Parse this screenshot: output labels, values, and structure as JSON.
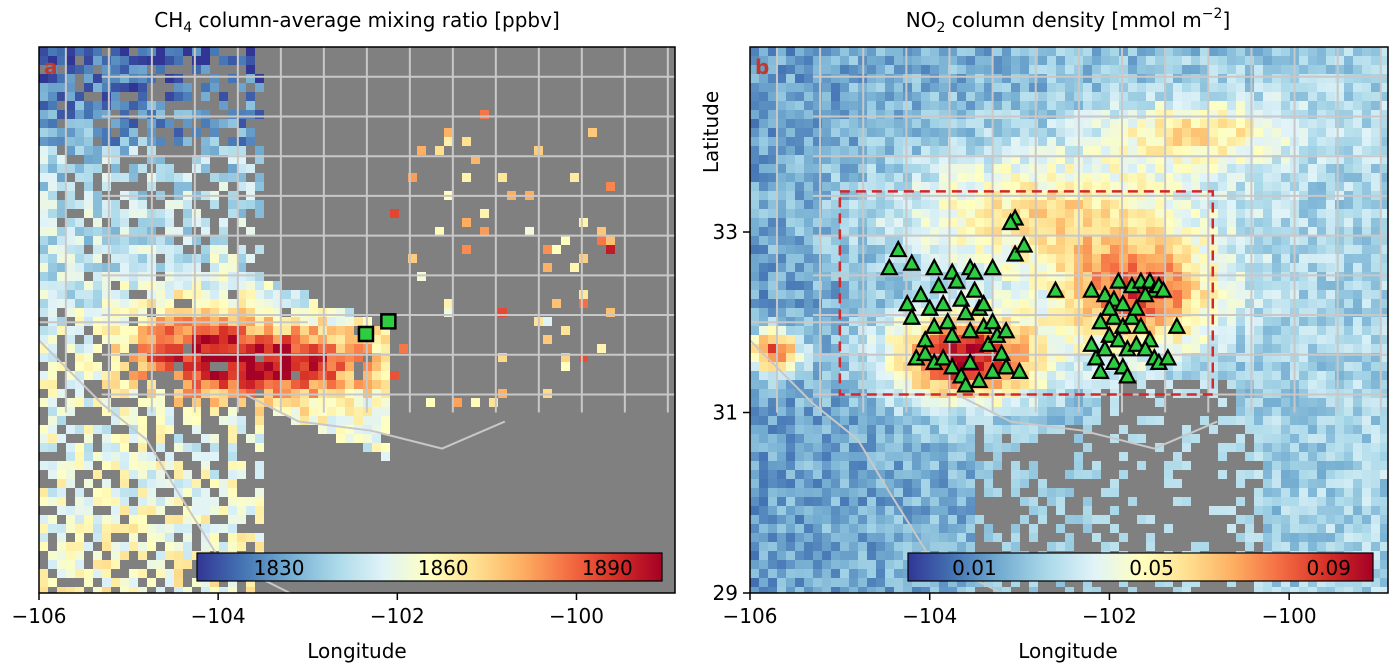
{
  "chart_data": [
    {
      "type": "heatmap",
      "panel_label": "a",
      "title": "CH4 column-average mixing ratio [ppbv]",
      "title_main": "CH",
      "title_sub": "4",
      "title_rest": " column-average mixing ratio [ppbv]",
      "xlabel": "Longitude",
      "ylabel": "",
      "xlim": [
        -106,
        -98.9
      ],
      "ylim": [
        29,
        35.05
      ],
      "xticks": [
        -106,
        -104,
        -102,
        -100
      ],
      "xtick_labels": [
        "−106",
        "−104",
        "−102",
        "−100"
      ],
      "colorbar": {
        "ticks": [
          1830,
          1860,
          1890
        ],
        "tick_labels": [
          "1830",
          "1860",
          "1890"
        ],
        "range": [
          1815,
          1900
        ],
        "cmap": "RdYlBu_r"
      },
      "background_color": "#808080",
      "markers": {
        "shape": "square",
        "color": "#2ecc40",
        "points": [
          [
            -102.35,
            31.87
          ],
          [
            -102.1,
            32.01
          ]
        ]
      }
    },
    {
      "type": "heatmap",
      "panel_label": "b",
      "title": "NO2 column density [mmol m−2]",
      "title_main": "NO",
      "title_sub": "2",
      "title_rest": " column density [mmol m",
      "title_sup": "−2",
      "title_end": "]",
      "xlabel": "Longitude",
      "ylabel": "Latitude",
      "xlim": [
        -106,
        -98.9
      ],
      "ylim": [
        29,
        35.05
      ],
      "xticks": [
        -106,
        -104,
        -102,
        -100
      ],
      "xtick_labels": [
        "−106",
        "−104",
        "−102",
        "−100"
      ],
      "yticks": [
        29,
        31,
        33
      ],
      "ytick_labels": [
        "29",
        "31",
        "33"
      ],
      "colorbar": {
        "ticks": [
          0.01,
          0.05,
          0.09
        ],
        "tick_labels": [
          "0.01",
          "0.05",
          "0.09"
        ],
        "range": [
          -0.005,
          0.1
        ],
        "cmap": "RdYlBu_r"
      },
      "box": {
        "lon": [
          -105.0,
          -100.85
        ],
        "lat": [
          31.2,
          33.45
        ],
        "style": "dashed",
        "color": "#d62728"
      },
      "markers": {
        "shape": "triangle",
        "color": "#2ecc40",
        "points": [
          [
            -104.35,
            32.8
          ],
          [
            -104.45,
            32.6
          ],
          [
            -104.2,
            32.65
          ],
          [
            -103.95,
            32.6
          ],
          [
            -103.75,
            32.55
          ],
          [
            -103.55,
            32.6
          ],
          [
            -103.3,
            32.6
          ],
          [
            -103.05,
            32.75
          ],
          [
            -102.95,
            32.85
          ],
          [
            -103.05,
            33.15
          ],
          [
            -103.1,
            33.1
          ],
          [
            -102.6,
            32.35
          ],
          [
            -104.25,
            32.2
          ],
          [
            -104.2,
            32.05
          ],
          [
            -104.1,
            32.3
          ],
          [
            -104.0,
            32.15
          ],
          [
            -103.95,
            31.95
          ],
          [
            -104.05,
            31.8
          ],
          [
            -103.9,
            32.4
          ],
          [
            -103.85,
            32.2
          ],
          [
            -103.8,
            32.0
          ],
          [
            -103.75,
            31.85
          ],
          [
            -103.7,
            32.45
          ],
          [
            -103.65,
            32.25
          ],
          [
            -103.6,
            32.1
          ],
          [
            -103.55,
            31.9
          ],
          [
            -103.5,
            32.35
          ],
          [
            -103.45,
            32.15
          ],
          [
            -103.4,
            31.95
          ],
          [
            -103.35,
            31.75
          ],
          [
            -103.3,
            32.0
          ],
          [
            -103.25,
            31.85
          ],
          [
            -103.2,
            31.65
          ],
          [
            -103.15,
            31.9
          ],
          [
            -103.4,
            32.2
          ],
          [
            -103.5,
            32.55
          ],
          [
            -104.15,
            31.6
          ],
          [
            -104.05,
            31.65
          ],
          [
            -103.95,
            31.55
          ],
          [
            -103.85,
            31.6
          ],
          [
            -103.75,
            31.5
          ],
          [
            -103.65,
            31.4
          ],
          [
            -103.55,
            31.55
          ],
          [
            -103.45,
            31.35
          ],
          [
            -103.3,
            31.45
          ],
          [
            -103.15,
            31.5
          ],
          [
            -103.0,
            31.45
          ],
          [
            -103.6,
            31.3
          ],
          [
            -102.2,
            32.35
          ],
          [
            -102.05,
            32.3
          ],
          [
            -101.95,
            32.25
          ],
          [
            -101.85,
            32.2
          ],
          [
            -101.75,
            32.4
          ],
          [
            -101.65,
            32.45
          ],
          [
            -101.55,
            32.45
          ],
          [
            -101.5,
            32.35
          ],
          [
            -101.45,
            32.4
          ],
          [
            -101.4,
            32.35
          ],
          [
            -101.6,
            32.3
          ],
          [
            -101.9,
            32.45
          ],
          [
            -102.1,
            32.0
          ],
          [
            -101.95,
            32.05
          ],
          [
            -101.85,
            31.95
          ],
          [
            -101.75,
            32.05
          ],
          [
            -101.65,
            31.95
          ],
          [
            -101.55,
            31.8
          ],
          [
            -102.0,
            31.85
          ],
          [
            -101.9,
            31.8
          ],
          [
            -101.8,
            31.7
          ],
          [
            -101.7,
            31.75
          ],
          [
            -101.6,
            31.7
          ],
          [
            -101.5,
            31.6
          ],
          [
            -102.15,
            31.6
          ],
          [
            -102.05,
            31.7
          ],
          [
            -101.95,
            31.55
          ],
          [
            -102.1,
            31.45
          ],
          [
            -101.85,
            31.5
          ],
          [
            -101.45,
            31.55
          ],
          [
            -101.35,
            31.6
          ],
          [
            -101.25,
            31.95
          ],
          [
            -101.8,
            31.4
          ],
          [
            -102.2,
            31.75
          ],
          [
            -102.0,
            32.15
          ],
          [
            -101.7,
            32.15
          ]
        ]
      }
    }
  ]
}
